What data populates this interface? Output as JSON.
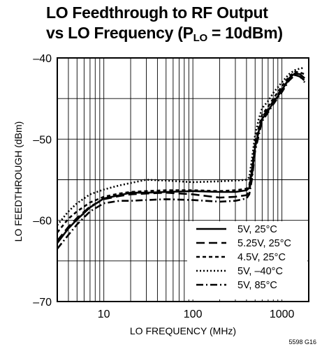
{
  "chart_data": {
    "type": "line",
    "title_line1": "LO Feedthrough to RF Output",
    "title_line2_pre": "vs LO Frequency (P",
    "title_line2_sub": "LO",
    "title_line2_post": " = 10dBm)",
    "xlabel": "LO FREQUENCY (MHz)",
    "ylabel": "LO FEEDTHROUGH (dBm)",
    "x_scale": "log",
    "xlim": [
      3,
      2000
    ],
    "ylim": [
      -70,
      -40
    ],
    "x_ticks": [
      {
        "value": 10,
        "label": "10"
      },
      {
        "value": 100,
        "label": "100"
      },
      {
        "value": 1000,
        "label": "1000"
      }
    ],
    "y_ticks": [
      {
        "value": -40,
        "label": "–40"
      },
      {
        "value": -50,
        "label": "–50"
      },
      {
        "value": -60,
        "label": "–60"
      },
      {
        "value": -70,
        "label": "–70"
      }
    ],
    "grid": true,
    "legend_position": "bottom-right",
    "series": [
      {
        "name": "5V, 25°C",
        "style": "solid",
        "x": [
          3,
          4,
          5,
          7,
          10,
          15,
          20,
          30,
          50,
          100,
          200,
          300,
          400,
          430,
          460,
          500,
          550,
          600,
          700,
          800,
          1000,
          1200,
          1400,
          1600,
          1800
        ],
        "y": [
          -62.8,
          -61,
          -59.9,
          -58.4,
          -57.3,
          -56.9,
          -56.6,
          -56.6,
          -56.5,
          -56.4,
          -56.5,
          -56.5,
          -56.3,
          -56,
          -54,
          -51,
          -49,
          -47.5,
          -46.5,
          -45.5,
          -44,
          -42.5,
          -41.9,
          -42,
          -42.5
        ]
      },
      {
        "name": "5.25V, 25°C",
        "style": "dash",
        "x": [
          3,
          4,
          5,
          7,
          10,
          15,
          20,
          30,
          50,
          100,
          200,
          300,
          400,
          430,
          460,
          500,
          550,
          600,
          700,
          800,
          1000,
          1200,
          1400,
          1600,
          1800
        ],
        "y": [
          -62.5,
          -60.8,
          -59.7,
          -58.3,
          -57.4,
          -57,
          -56.8,
          -56.7,
          -56.6,
          -56.8,
          -57.2,
          -57.1,
          -56.9,
          -56.4,
          -54.5,
          -51,
          -49,
          -47.3,
          -46.3,
          -45.3,
          -43.8,
          -42.7,
          -42.1,
          -42.3,
          -43
        ]
      },
      {
        "name": "4.5V, 25°C",
        "style": "short-dash",
        "x": [
          3,
          4,
          5,
          7,
          10,
          15,
          20,
          30,
          50,
          100,
          200,
          300,
          400,
          430,
          460,
          500,
          550,
          600,
          700,
          800,
          1000,
          1200,
          1400,
          1600,
          1800
        ],
        "y": [
          -61.5,
          -59.8,
          -58.9,
          -57.8,
          -57.1,
          -56.7,
          -56.5,
          -56.4,
          -56.3,
          -56.3,
          -56.4,
          -56.3,
          -56.1,
          -55.7,
          -53.5,
          -50.5,
          -48.5,
          -47,
          -46,
          -45,
          -43.5,
          -42.3,
          -41.7,
          -41.8,
          -42
        ]
      },
      {
        "name": "5V, –40°C",
        "style": "dot",
        "x": [
          3,
          4,
          5,
          7,
          10,
          15,
          20,
          30,
          50,
          100,
          200,
          300,
          400,
          430,
          460,
          500,
          550,
          600,
          700,
          800,
          1000,
          1200,
          1400,
          1600,
          1800
        ],
        "y": [
          -60.6,
          -58.9,
          -57.9,
          -56.8,
          -56.2,
          -55.7,
          -55.4,
          -55,
          -55.1,
          -55.3,
          -55.2,
          -55.1,
          -55,
          -54.7,
          -52.5,
          -49.5,
          -47.5,
          -46.2,
          -45.3,
          -44.3,
          -43,
          -42,
          -41.5,
          -41.3,
          -41.2
        ]
      },
      {
        "name": "5V, 85°C",
        "style": "dash-dot",
        "x": [
          3,
          4,
          5,
          7,
          10,
          15,
          20,
          30,
          50,
          100,
          200,
          300,
          400,
          430,
          460,
          500,
          550,
          600,
          700,
          800,
          1000,
          1200,
          1400,
          1600,
          1800
        ],
        "y": [
          -63.5,
          -61.8,
          -60.5,
          -58.9,
          -57.9,
          -57.6,
          -57.6,
          -57.5,
          -57.4,
          -57.5,
          -57.7,
          -57.6,
          -57.3,
          -56.8,
          -55,
          -51.5,
          -49.5,
          -47.8,
          -46.7,
          -45.7,
          -44.2,
          -42.8,
          -42.1,
          -42.3,
          -42.8
        ]
      }
    ]
  },
  "figure_note": "5598 G16"
}
